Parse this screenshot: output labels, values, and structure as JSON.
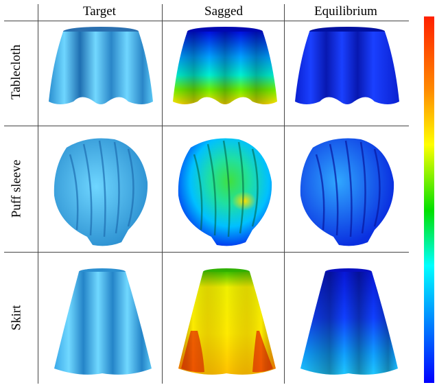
{
  "columns": [
    "Target",
    "Sagged",
    "Equilibrium"
  ],
  "rows": [
    "Tablecloth",
    "Puff sleeve",
    "Skirt"
  ],
  "colors": {
    "target_cloth": "#49c7f3",
    "equilibrium_cloth": "#1030f0",
    "colorbar_max": "#ff2000",
    "colorbar_min": "#0000ff"
  },
  "colorbar_stops": [
    "#ff2000",
    "#ff8a00",
    "#ffff00",
    "#00e000",
    "#00ffff",
    "#00a0ff",
    "#0000ff"
  ]
}
